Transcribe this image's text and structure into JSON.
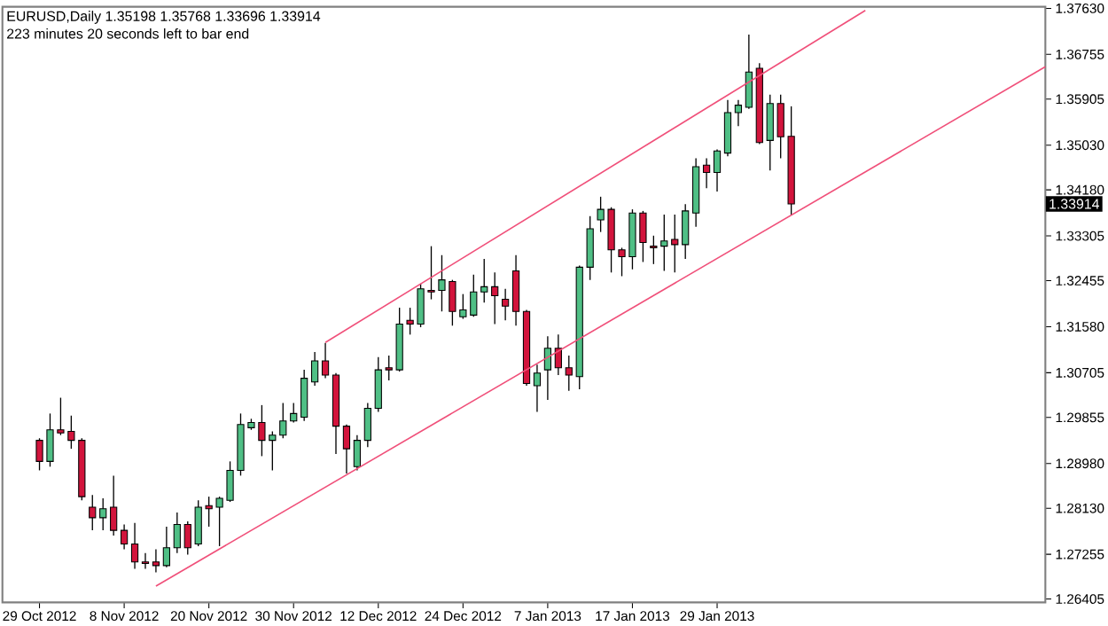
{
  "chart_data": {
    "type": "candlestick",
    "title": "EURUSD,Daily  1.35198 1.35768 1.33696 1.33914",
    "subtitle": "223 minutes 20 seconds left to bar end",
    "categories": [
      "29 Oct 2012",
      null,
      null,
      null,
      null,
      null,
      null,
      null,
      "8 Nov 2012",
      null,
      null,
      null,
      null,
      null,
      null,
      null,
      "20 Nov 2012",
      null,
      null,
      null,
      null,
      null,
      null,
      null,
      "30 Nov 2012",
      null,
      null,
      null,
      null,
      null,
      null,
      null,
      "12 Dec 2012",
      null,
      null,
      null,
      null,
      null,
      null,
      null,
      "24 Dec 2012",
      null,
      null,
      null,
      null,
      null,
      null,
      null,
      "7 Jan 2013",
      null,
      null,
      null,
      null,
      null,
      null,
      null,
      "17 Jan 2013",
      null,
      null,
      null,
      null,
      null,
      null,
      null,
      "29 Jan 2013",
      null,
      null,
      null,
      null,
      null,
      null,
      null,
      null,
      null,
      null,
      null,
      null,
      null,
      null,
      null,
      null,
      null,
      null,
      null,
      null,
      null,
      null,
      null,
      null,
      null,
      null,
      null,
      null,
      null,
      null,
      null
    ],
    "ohlc": [
      [
        1.2942,
        1.2946,
        1.2885,
        1.2902
      ],
      [
        1.2902,
        1.2993,
        1.2892,
        1.2962
      ],
      [
        1.2962,
        1.3023,
        1.2952,
        1.2956
      ],
      [
        1.2959,
        1.2989,
        1.2926,
        1.2942
      ],
      [
        1.2942,
        1.2946,
        1.2828,
        1.2835
      ],
      [
        1.2815,
        1.2838,
        1.2771,
        1.2795
      ],
      [
        1.2795,
        1.2832,
        1.2771,
        1.2812
      ],
      [
        1.2815,
        1.2875,
        1.2761,
        1.2771
      ],
      [
        1.2771,
        1.2782,
        1.2735,
        1.2745
      ],
      [
        1.2745,
        1.2785,
        1.2698,
        1.2711
      ],
      [
        1.2711,
        1.2728,
        1.2698,
        1.2708
      ],
      [
        1.2711,
        1.2735,
        1.2691,
        1.2704
      ],
      [
        1.2704,
        1.2778,
        1.2701,
        1.2738
      ],
      [
        1.2738,
        1.2805,
        1.2728,
        1.2782
      ],
      [
        1.2782,
        1.2788,
        1.2725,
        1.2738
      ],
      [
        1.2745,
        1.2828,
        1.2741,
        1.2815
      ],
      [
        1.2818,
        1.2835,
        1.2778,
        1.2812
      ],
      [
        1.2815,
        1.2835,
        1.2741,
        1.2832
      ],
      [
        1.2828,
        1.2902,
        1.2825,
        1.2885
      ],
      [
        1.2885,
        1.2993,
        1.2875,
        1.2972
      ],
      [
        1.2966,
        1.2983,
        1.2962,
        1.2976
      ],
      [
        1.2976,
        1.3009,
        1.2912,
        1.2942
      ],
      [
        1.2942,
        1.2959,
        1.2885,
        1.2952
      ],
      [
        1.2952,
        1.3013,
        1.2946,
        1.2979
      ],
      [
        1.2979,
        1.3013,
        1.2976,
        1.2993
      ],
      [
        1.2986,
        1.3076,
        1.2979,
        1.306
      ],
      [
        1.3053,
        1.311,
        1.3046,
        1.3093
      ],
      [
        1.3093,
        1.3127,
        1.306,
        1.3066
      ],
      [
        1.3066,
        1.307,
        1.2916,
        1.2969
      ],
      [
        1.2969,
        1.2972,
        1.2879,
        1.2926
      ],
      [
        1.2892,
        1.2952,
        1.2885,
        1.2942
      ],
      [
        1.2942,
        1.3013,
        1.2929,
        1.3003
      ],
      [
        1.3003,
        1.31,
        1.2996,
        1.3076
      ],
      [
        1.308,
        1.3103,
        1.3056,
        1.3076
      ],
      [
        1.3076,
        1.3194,
        1.3073,
        1.3163
      ],
      [
        1.317,
        1.3194,
        1.3143,
        1.3163
      ],
      [
        1.3163,
        1.324,
        1.3157,
        1.323
      ],
      [
        1.3227,
        1.3311,
        1.321,
        1.3224
      ],
      [
        1.3227,
        1.3294,
        1.3187,
        1.3247
      ],
      [
        1.3244,
        1.3247,
        1.316,
        1.3187
      ],
      [
        1.3177,
        1.322,
        1.3173,
        1.319
      ],
      [
        1.318,
        1.3257,
        1.3177,
        1.3224
      ],
      [
        1.3224,
        1.3287,
        1.3204,
        1.3234
      ],
      [
        1.3234,
        1.3261,
        1.3163,
        1.3217
      ],
      [
        1.321,
        1.323,
        1.317,
        1.3197
      ],
      [
        1.3264,
        1.3294,
        1.316,
        1.3187
      ],
      [
        1.3187,
        1.319,
        1.3046,
        1.305
      ],
      [
        1.3046,
        1.3086,
        1.2996,
        1.307
      ],
      [
        1.3076,
        1.314,
        1.3019,
        1.3117
      ],
      [
        1.3117,
        1.3143,
        1.3066,
        1.308
      ],
      [
        1.308,
        1.3103,
        1.3036,
        1.3066
      ],
      [
        1.3063,
        1.3274,
        1.3039,
        1.3271
      ],
      [
        1.3271,
        1.3368,
        1.3247,
        1.3344
      ],
      [
        1.3361,
        1.3405,
        1.3338,
        1.3381
      ],
      [
        1.3381,
        1.3385,
        1.3261,
        1.3304
      ],
      [
        1.3304,
        1.3308,
        1.3254,
        1.3291
      ],
      [
        1.3291,
        1.3381,
        1.3267,
        1.3374
      ],
      [
        1.3374,
        1.3378,
        1.3281,
        1.3318
      ],
      [
        1.3311,
        1.3331,
        1.3277,
        1.3308
      ],
      [
        1.3311,
        1.3371,
        1.3264,
        1.3321
      ],
      [
        1.3324,
        1.3371,
        1.3261,
        1.3314
      ],
      [
        1.3314,
        1.3391,
        1.3287,
        1.3378
      ],
      [
        1.3374,
        1.3478,
        1.3348,
        1.3462
      ],
      [
        1.3465,
        1.3478,
        1.3421,
        1.3451
      ],
      [
        1.3451,
        1.3495,
        1.3415,
        1.3492
      ],
      [
        1.3488,
        1.3589,
        1.3482,
        1.3565
      ],
      [
        1.3565,
        1.3589,
        1.3539,
        1.3579
      ],
      [
        1.3575,
        1.3713,
        1.3572,
        1.3642
      ],
      [
        1.3649,
        1.3659,
        1.3505,
        1.3508
      ],
      [
        1.3512,
        1.3599,
        1.3455,
        1.3582
      ],
      [
        1.3582,
        1.3599,
        1.3478,
        1.3519
      ],
      [
        1.35198,
        1.35768,
        1.33696,
        1.33914
      ],
      null,
      null,
      null,
      null,
      null,
      null,
      null,
      null,
      null,
      null,
      null,
      null,
      null,
      null,
      null,
      null,
      null,
      null,
      null,
      null,
      null,
      null,
      null,
      null
    ],
    "series": [
      {
        "type": "line",
        "color": "#f0507a",
        "values": [
          null,
          null,
          null,
          null,
          null,
          null,
          null,
          null,
          null,
          null,
          null,
          null,
          null,
          null,
          null,
          null,
          null,
          null,
          null,
          null,
          null,
          null,
          null,
          null,
          null,
          null,
          null,
          1.3128,
          null,
          null,
          null,
          null,
          null,
          null,
          null,
          null,
          null,
          null,
          null,
          null,
          null,
          null,
          null,
          null,
          null,
          null,
          null,
          null,
          null,
          null,
          null,
          null,
          null,
          null,
          null,
          null,
          null,
          null,
          null,
          null,
          null,
          null,
          null,
          null,
          null,
          null,
          null,
          null,
          null,
          null,
          null,
          null,
          null,
          null,
          null,
          null,
          null,
          null,
          1.3759,
          null,
          null,
          null,
          null,
          null,
          null,
          null,
          null,
          null,
          null,
          null,
          null,
          null,
          null,
          null,
          null,
          null
        ]
      },
      {
        "type": "line",
        "color": "#f0507a",
        "values": [
          null,
          null,
          null,
          null,
          null,
          null,
          null,
          null,
          null,
          null,
          null,
          1.2665,
          null,
          null,
          null,
          null,
          null,
          null,
          null,
          null,
          null,
          null,
          null,
          null,
          null,
          null,
          null,
          null,
          null,
          null,
          null,
          null,
          null,
          null,
          null,
          null,
          null,
          null,
          null,
          null,
          null,
          null,
          null,
          null,
          null,
          null,
          null,
          null,
          null,
          null,
          null,
          null,
          null,
          null,
          null,
          null,
          null,
          null,
          null,
          null,
          null,
          null,
          null,
          null,
          null,
          null,
          null,
          null,
          null,
          null,
          null,
          null,
          null,
          null,
          null,
          null,
          null,
          null,
          null,
          null,
          null,
          null,
          null,
          null,
          null,
          null,
          null,
          null,
          null,
          null,
          null,
          null,
          null,
          null,
          null,
          1.3652
        ]
      }
    ],
    "ylim": [
      1.2634,
      1.3766
    ],
    "yticks": [
      {
        "value": 1.26405,
        "label": "1.26405"
      },
      {
        "value": 1.27255,
        "label": "1.27255"
      },
      {
        "value": 1.2813,
        "label": "1.28130"
      },
      {
        "value": 1.2898,
        "label": "1.28980"
      },
      {
        "value": 1.29855,
        "label": "1.29855"
      },
      {
        "value": 1.30705,
        "label": "1.30705"
      },
      {
        "value": 1.3158,
        "label": "1.31580"
      },
      {
        "value": 1.32455,
        "label": "1.32455"
      },
      {
        "value": 1.33305,
        "label": "1.33305"
      },
      {
        "value": 1.3418,
        "label": "1.34180"
      },
      {
        "value": 1.3503,
        "label": "1.35030"
      },
      {
        "value": 1.35905,
        "label": "1.35905"
      },
      {
        "value": 1.36755,
        "label": "1.36755"
      },
      {
        "value": 1.3763,
        "label": "1.37630"
      }
    ],
    "annotations": [
      "1.33914"
    ]
  }
}
